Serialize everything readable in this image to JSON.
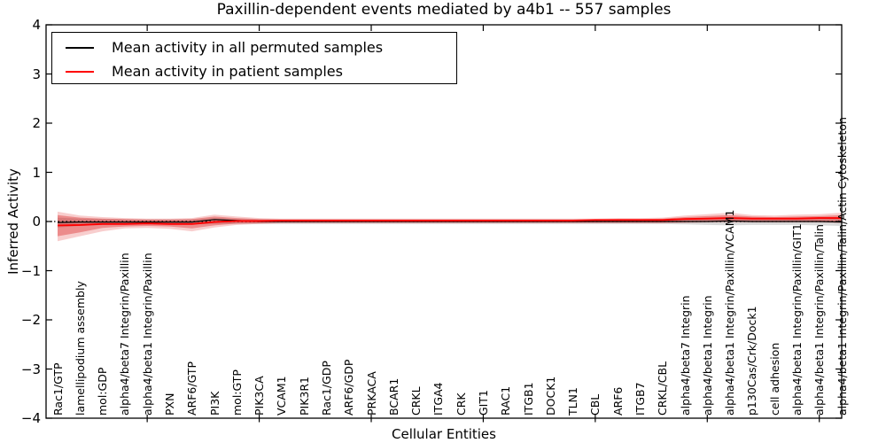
{
  "title": "Paxillin-dependent events mediated by a4b1 -- 557 samples",
  "axes": {
    "x_label": "Cellular Entities",
    "y_label": "Inferred Activity",
    "y_tick_labels": [
      "4",
      "3",
      "2",
      "1",
      "0",
      "−1",
      "−2",
      "−3",
      "−4"
    ],
    "y_tick_values": [
      4,
      3,
      2,
      1,
      0,
      -1,
      -2,
      -3,
      -4
    ]
  },
  "legend": {
    "entries": [
      {
        "label": "Mean activity in all permuted samples",
        "color": "#000000"
      },
      {
        "label": "Mean activity in patient samples",
        "color": "#ff0000"
      }
    ]
  },
  "colors": {
    "frame": "#000000",
    "zero_line": "#000000",
    "permuted_band": "rgba(130,130,130,0.30)",
    "patient_band_outer": "rgba(225,30,30,0.22)",
    "patient_band_inner": "rgba(215,15,15,0.34)",
    "permuted_line": "#000000",
    "patient_line": "#ff0000"
  },
  "chart_data": {
    "type": "line",
    "title": "Paxillin-dependent events mediated by a4b1 -- 557 samples",
    "xlabel": "Cellular Entities",
    "ylabel": "Inferred Activity",
    "ylim": [
      -4,
      4
    ],
    "grid": false,
    "legend_position": "upper left",
    "zero_reference_line": 0,
    "x_major_tick_indices": [
      4,
      9,
      14,
      19,
      24,
      29,
      34
    ],
    "categories": [
      "Rac1/GTP",
      "lamellipodium assembly",
      "mol:GDP",
      "alpha4/beta7 Integrin/Paxillin",
      "alpha4/beta1 Integrin/Paxillin",
      "PXN",
      "ARF6/GTP",
      "PI3K",
      "mol:GTP",
      "PIK3CA",
      "VCAM1",
      "PIK3R1",
      "Rac1/GDP",
      "ARF6/GDP",
      "PRKACA",
      "BCAR1",
      "CRKL",
      "ITGA4",
      "CRK",
      "GIT1",
      "RAC1",
      "ITGB1",
      "DOCK1",
      "TLN1",
      "CBL",
      "ARF6",
      "ITGB7",
      "CRKL/CBL",
      "alpha4/beta7 Integrin",
      "alpha4/beta1 Integrin",
      "alpha4/beta1 Integrin/Paxillin/VCAM1",
      "p130Cas/Crk/Dock1",
      "cell adhesion",
      "alpha4/beta1 Integrin/Paxillin/GIT1",
      "alpha4/beta1 Integrin/Paxillin/Talin",
      "alpha4/beta1 Integrin/Paxillin/Talin/Actin Cytoskeleton"
    ],
    "series": [
      {
        "name": "Mean activity in all permuted samples",
        "color": "#000000",
        "values": [
          -0.02,
          -0.01,
          -0.01,
          -0.01,
          -0.01,
          -0.01,
          -0.01,
          0.04,
          0.02,
          0.0,
          0.0,
          0.0,
          0.0,
          0.0,
          0.0,
          0.0,
          0.0,
          0.0,
          0.0,
          0.0,
          0.0,
          0.0,
          0.0,
          0.0,
          0.0,
          0.0,
          0.0,
          0.0,
          0.0,
          0.0,
          0.01,
          0.0,
          0.0,
          0.0,
          0.0,
          -0.01
        ]
      },
      {
        "name": "Mean activity in patient samples",
        "color": "#ff0000",
        "values": [
          -0.08,
          -0.07,
          -0.05,
          -0.05,
          -0.04,
          -0.05,
          -0.05,
          -0.01,
          0.01,
          0.01,
          0.02,
          0.02,
          0.02,
          0.02,
          0.02,
          0.02,
          0.02,
          0.02,
          0.02,
          0.02,
          0.02,
          0.02,
          0.02,
          0.02,
          0.03,
          0.03,
          0.03,
          0.03,
          0.05,
          0.06,
          0.07,
          0.06,
          0.06,
          0.06,
          0.07,
          0.07
        ]
      }
    ],
    "bands": [
      {
        "name": "permuted-sample-range",
        "color_key": "permuted_band",
        "upper": [
          0.08,
          0.06,
          0.05,
          0.04,
          0.04,
          0.04,
          0.04,
          0.07,
          0.05,
          0.04,
          0.04,
          0.04,
          0.04,
          0.04,
          0.04,
          0.04,
          0.04,
          0.04,
          0.04,
          0.04,
          0.04,
          0.04,
          0.04,
          0.04,
          0.04,
          0.04,
          0.04,
          0.04,
          0.05,
          0.05,
          0.06,
          0.05,
          0.05,
          0.05,
          0.05,
          0.06
        ],
        "lower": [
          -0.12,
          -0.09,
          -0.07,
          -0.06,
          -0.05,
          -0.05,
          -0.06,
          -0.05,
          -0.05,
          -0.05,
          -0.05,
          -0.05,
          -0.05,
          -0.05,
          -0.05,
          -0.05,
          -0.05,
          -0.05,
          -0.05,
          -0.05,
          -0.05,
          -0.05,
          -0.05,
          -0.05,
          -0.05,
          -0.05,
          -0.05,
          -0.05,
          -0.06,
          -0.07,
          -0.08,
          -0.07,
          -0.07,
          -0.07,
          -0.08,
          -0.09
        ]
      },
      {
        "name": "patient-sample-range-outer",
        "color_key": "patient_band_outer",
        "upper": [
          0.2,
          0.12,
          0.09,
          0.07,
          0.06,
          0.06,
          0.07,
          0.14,
          0.1,
          0.07,
          0.06,
          0.06,
          0.06,
          0.06,
          0.06,
          0.06,
          0.06,
          0.06,
          0.06,
          0.06,
          0.06,
          0.06,
          0.06,
          0.06,
          0.06,
          0.07,
          0.07,
          0.08,
          0.12,
          0.15,
          0.18,
          0.13,
          0.12,
          0.14,
          0.15,
          0.18
        ],
        "lower": [
          -0.4,
          -0.3,
          -0.2,
          -0.14,
          -0.13,
          -0.15,
          -0.2,
          -0.12,
          -0.07,
          -0.05,
          -0.04,
          -0.04,
          -0.04,
          -0.04,
          -0.04,
          -0.04,
          -0.04,
          -0.04,
          -0.04,
          -0.04,
          -0.04,
          -0.04,
          -0.04,
          -0.04,
          -0.04,
          -0.04,
          -0.04,
          -0.04,
          -0.03,
          -0.02,
          -0.02,
          -0.02,
          -0.02,
          -0.02,
          -0.02,
          -0.03
        ]
      },
      {
        "name": "patient-sample-range-inner",
        "color_key": "patient_band_inner",
        "upper": [
          0.13,
          0.08,
          0.06,
          0.05,
          0.04,
          0.04,
          0.05,
          0.1,
          0.07,
          0.05,
          0.04,
          0.04,
          0.04,
          0.04,
          0.04,
          0.04,
          0.04,
          0.04,
          0.04,
          0.04,
          0.04,
          0.04,
          0.04,
          0.04,
          0.04,
          0.05,
          0.05,
          0.06,
          0.09,
          0.11,
          0.13,
          0.1,
          0.09,
          0.1,
          0.11,
          0.13
        ],
        "lower": [
          -0.3,
          -0.22,
          -0.13,
          -0.1,
          -0.09,
          -0.1,
          -0.14,
          -0.08,
          -0.04,
          -0.03,
          -0.02,
          -0.02,
          -0.02,
          -0.02,
          -0.02,
          -0.02,
          -0.02,
          -0.02,
          -0.02,
          -0.02,
          -0.02,
          -0.02,
          -0.02,
          -0.02,
          -0.02,
          -0.02,
          -0.02,
          -0.02,
          -0.01,
          0.0,
          0.0,
          0.0,
          0.0,
          0.0,
          0.0,
          -0.01
        ]
      }
    ]
  }
}
